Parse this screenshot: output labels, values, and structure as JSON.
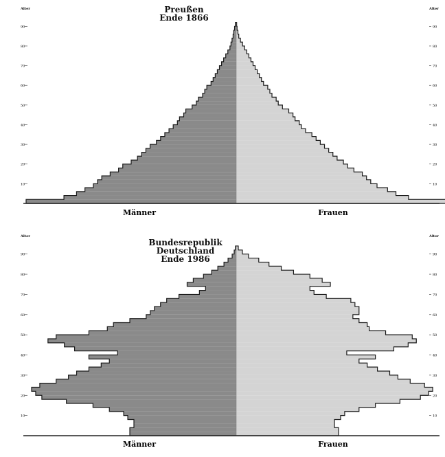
{
  "chart_data": [
    {
      "type": "population-pyramid",
      "title": [
        "Preußen",
        "Ende 1866"
      ],
      "ylabel": "Alter",
      "left_label": "Männer",
      "right_label": "Frauen",
      "yticks": [
        10,
        20,
        30,
        40,
        50,
        60,
        70,
        80,
        90
      ],
      "ylim": [
        0,
        95
      ],
      "value_unit": "relative share (largest age group = 1.0)",
      "colors": {
        "men": "#8a8a8a",
        "women": "#d4d4d4",
        "outline": "#1a1a1a"
      },
      "ages": [
        0,
        2,
        4,
        6,
        8,
        10,
        12,
        14,
        16,
        18,
        20,
        22,
        24,
        26,
        28,
        30,
        32,
        34,
        36,
        38,
        40,
        42,
        44,
        46,
        48,
        50,
        52,
        54,
        56,
        58,
        60,
        62,
        64,
        66,
        68,
        70,
        72,
        74,
        76,
        78,
        80,
        82,
        84,
        86,
        88,
        90
      ],
      "men": [
        1.0,
        0.82,
        0.76,
        0.72,
        0.68,
        0.66,
        0.64,
        0.6,
        0.56,
        0.54,
        0.5,
        0.47,
        0.45,
        0.43,
        0.41,
        0.38,
        0.36,
        0.34,
        0.32,
        0.3,
        0.28,
        0.27,
        0.25,
        0.24,
        0.21,
        0.19,
        0.18,
        0.16,
        0.15,
        0.14,
        0.12,
        0.11,
        0.1,
        0.09,
        0.08,
        0.07,
        0.06,
        0.05,
        0.04,
        0.03,
        0.025,
        0.02,
        0.015,
        0.012,
        0.008,
        0.004
      ],
      "women": [
        1.0,
        0.82,
        0.76,
        0.72,
        0.67,
        0.64,
        0.62,
        0.6,
        0.56,
        0.53,
        0.51,
        0.48,
        0.46,
        0.44,
        0.42,
        0.4,
        0.38,
        0.36,
        0.33,
        0.31,
        0.3,
        0.28,
        0.27,
        0.25,
        0.22,
        0.2,
        0.19,
        0.17,
        0.16,
        0.15,
        0.13,
        0.12,
        0.11,
        0.1,
        0.09,
        0.08,
        0.07,
        0.06,
        0.05,
        0.04,
        0.03,
        0.02,
        0.012,
        0.008,
        0.004,
        0.002
      ]
    },
    {
      "type": "population-pyramid",
      "title": [
        "Bundesrepublik",
        "Deutschland",
        "Ende 1986"
      ],
      "ylabel": "Alter",
      "left_label": "Männer",
      "right_label": "Frauen",
      "yticks": [
        10,
        20,
        30,
        40,
        50,
        60,
        70,
        80,
        90
      ],
      "ylim": [
        0,
        95
      ],
      "value_unit": "relative share (largest age group = 1.0)",
      "colors": {
        "men": "#8a8a8a",
        "women": "#d4d4d4",
        "outline": "#1a1a1a"
      },
      "ages": [
        0,
        2,
        4,
        6,
        8,
        10,
        12,
        14,
        16,
        18,
        20,
        22,
        24,
        26,
        28,
        30,
        32,
        34,
        36,
        38,
        40,
        42,
        44,
        46,
        48,
        50,
        52,
        54,
        56,
        58,
        60,
        62,
        64,
        66,
        68,
        70,
        72,
        74,
        76,
        78,
        80,
        82,
        84,
        86,
        88,
        90,
        92
      ],
      "men": [
        0.52,
        0.52,
        0.5,
        0.5,
        0.53,
        0.55,
        0.62,
        0.7,
        0.83,
        0.95,
        0.98,
        1.0,
        0.96,
        0.88,
        0.82,
        0.78,
        0.72,
        0.66,
        0.62,
        0.72,
        0.58,
        0.79,
        0.84,
        0.92,
        0.88,
        0.72,
        0.63,
        0.6,
        0.52,
        0.44,
        0.42,
        0.4,
        0.37,
        0.34,
        0.28,
        0.18,
        0.15,
        0.24,
        0.21,
        0.16,
        0.12,
        0.09,
        0.06,
        0.04,
        0.02,
        0.01,
        0.004
      ],
      "women": [
        0.5,
        0.5,
        0.48,
        0.48,
        0.51,
        0.53,
        0.6,
        0.68,
        0.8,
        0.9,
        0.94,
        0.96,
        0.92,
        0.85,
        0.79,
        0.75,
        0.69,
        0.64,
        0.6,
        0.68,
        0.54,
        0.77,
        0.84,
        0.88,
        0.86,
        0.73,
        0.65,
        0.64,
        0.6,
        0.57,
        0.6,
        0.6,
        0.58,
        0.56,
        0.44,
        0.38,
        0.36,
        0.46,
        0.42,
        0.36,
        0.28,
        0.22,
        0.16,
        0.11,
        0.06,
        0.03,
        0.01
      ]
    }
  ]
}
